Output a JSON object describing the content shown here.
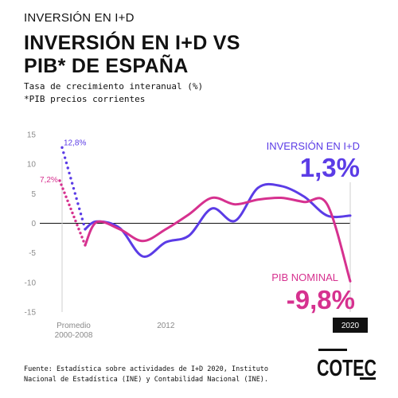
{
  "header": {
    "kicker": "INVERSIÓN EN I+D",
    "title_line1": "INVERSIÓN EN I+D VS",
    "title_line2": "PIB* DE ESPAÑA",
    "subtitle_line1": "Tasa de crecimiento interanual (%)",
    "subtitle_line2": "*PIB precios corrientes"
  },
  "source": {
    "line1": "Fuente: Estadística sobre actividades de I+D 2020, Instituto",
    "line2": "Nacional de Estadística (INE) y Contabilidad Nacional (INE)."
  },
  "logo": {
    "text": "COTEC"
  },
  "colors": {
    "rd": "#5b3ce6",
    "gdp": "#d6318f",
    "axis": "#111111",
    "grid": "#cfcfcf"
  },
  "chart_data": {
    "type": "line",
    "ylim": [
      -15,
      15
    ],
    "yticks": [
      "15",
      "10",
      "5",
      "0",
      "-5",
      "-10",
      "-15"
    ],
    "ytick_values": [
      15,
      10,
      5,
      0,
      -5,
      -10,
      -15
    ],
    "xticks": [
      {
        "label": "Promedio",
        "label2": "2000-2008",
        "x": 2008
      },
      {
        "label": "2012",
        "label2": "",
        "x": 2012
      },
      {
        "label": "2020",
        "label2": "",
        "x": 2020,
        "highlight": true
      }
    ],
    "xlim": [
      2007.5,
      2020
    ],
    "series": [
      {
        "name": "INVERSIÓN EN I+D",
        "value_label": "1,3%",
        "average_label": "12,8%",
        "average_value": 12.8,
        "color": "#5b3ce6",
        "x": [
          2008.5,
          2009,
          2010,
          2011,
          2012,
          2013,
          2014,
          2015,
          2016,
          2017,
          2018,
          2019,
          2020
        ],
        "values": [
          -1.0,
          0.3,
          -0.8,
          -5.6,
          -3.2,
          -2.1,
          2.5,
          0.4,
          6.0,
          6.3,
          4.5,
          1.3,
          1.3
        ]
      },
      {
        "name": "PIB NOMINAL",
        "value_label": "-9,8%",
        "average_label": "7,2%",
        "average_value": 7.2,
        "color": "#d6318f",
        "x": [
          2008.5,
          2009,
          2010,
          2011,
          2012,
          2013,
          2014,
          2015,
          2016,
          2017,
          2018,
          2019,
          2020
        ],
        "values": [
          -3.7,
          0.2,
          -1.0,
          -3.0,
          -1.0,
          1.5,
          4.3,
          3.2,
          4.0,
          4.3,
          3.6,
          3.2,
          -9.8
        ]
      }
    ]
  }
}
